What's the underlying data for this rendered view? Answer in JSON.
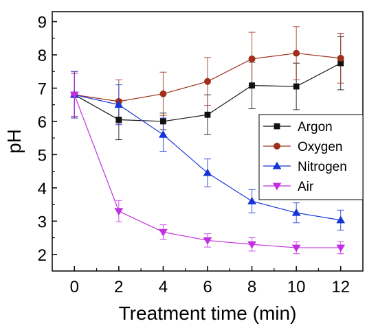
{
  "chart_data": {
    "type": "line",
    "xlabel": "Treatment time (min)",
    "ylabel": "pH",
    "xlim": [
      -1,
      13
    ],
    "ylim": [
      1.5,
      9.3
    ],
    "xticks": [
      0,
      2,
      4,
      6,
      8,
      10,
      12
    ],
    "yticks": [
      2,
      3,
      4,
      5,
      6,
      7,
      8,
      9
    ],
    "legend_position": "right",
    "grid": false,
    "x": [
      0,
      2,
      4,
      6,
      8,
      10,
      12
    ],
    "series": [
      {
        "name": "Argon",
        "color": "#111111",
        "marker": "square",
        "values": [
          6.8,
          6.05,
          6.0,
          6.2,
          7.08,
          7.05,
          7.75
        ],
        "errors": [
          0.65,
          0.6,
          0.25,
          0.6,
          0.7,
          0.7,
          0.8
        ]
      },
      {
        "name": "Oxygen",
        "color": "#a0301b",
        "marker": "circle",
        "values": [
          6.8,
          6.6,
          6.83,
          7.2,
          7.88,
          8.05,
          7.9
        ],
        "errors": [
          0.7,
          0.65,
          0.65,
          0.72,
          0.8,
          0.8,
          0.75
        ]
      },
      {
        "name": "Nitrogen",
        "color": "#1535d8",
        "marker": "triangle-up",
        "values": [
          6.8,
          6.5,
          5.6,
          4.45,
          3.6,
          3.25,
          3.03
        ],
        "errors": [
          0.7,
          0.6,
          0.5,
          0.42,
          0.35,
          0.3,
          0.3
        ]
      },
      {
        "name": "Air",
        "color": "#c22ee0",
        "marker": "triangle-down",
        "values": [
          6.8,
          3.3,
          2.67,
          2.42,
          2.3,
          2.2,
          2.2
        ],
        "errors": [
          0.65,
          0.32,
          0.22,
          0.2,
          0.2,
          0.18,
          0.18
        ]
      }
    ]
  }
}
